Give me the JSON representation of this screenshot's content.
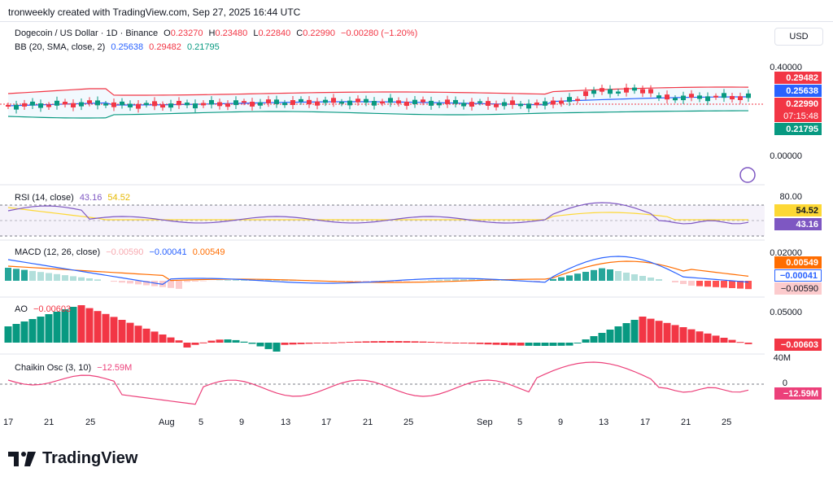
{
  "header": {
    "text": "tronweekly created with TradingView.com, Sep 27, 2025 16:44 UTC"
  },
  "main": {
    "title": "Dogecoin / US Dollar · 1D · Binance",
    "ohlc": {
      "o_label": "O",
      "o": "0.23270",
      "h_label": "H",
      "h": "0.23480",
      "l_label": "L",
      "l": "0.22840",
      "c_label": "C",
      "c": "0.22990",
      "change": "−0.00280 (−1.20%)"
    },
    "bb_label": "BB (20, SMA, close, 2)",
    "bb_basis": "0.25638",
    "bb_upper": "0.29482",
    "bb_lower": "0.21795",
    "scale": [
      "0.40000",
      "0.00000"
    ],
    "tags": {
      "upper": "0.29482",
      "basis": "0.25638",
      "price": "0.22990",
      "countdown": "07:15:48",
      "lower": "0.21795"
    }
  },
  "currency_button": "USD",
  "rsi": {
    "label": "RSI (14, close)",
    "value": "43.16",
    "ma": "54.52",
    "scale_top": "80.00",
    "tag_ma": "54.52",
    "tag_val": "43.16"
  },
  "macd": {
    "label": "MACD (12, 26, close)",
    "hist": "−0.00590",
    "macd": "−0.00041",
    "signal": "0.00549",
    "scale_top": "0.02000",
    "tag_signal": "0.00549",
    "tag_macd": "−0.00041",
    "tag_hist": "−0.00590"
  },
  "ao": {
    "label": "AO",
    "value": "−0.00603",
    "scale_top": "0.05000",
    "tag": "−0.00603"
  },
  "chaikin": {
    "label": "Chaikin Osc (3, 10)",
    "value": "−12.59M",
    "scale_top": "40M",
    "scale_zero": "0",
    "tag": "−12.59M"
  },
  "xaxis": [
    "17",
    "21",
    "25",
    "Aug",
    "5",
    "9",
    "13",
    "17",
    "21",
    "25",
    "Sep",
    "5",
    "9",
    "13",
    "17",
    "21",
    "25"
  ],
  "footer": {
    "brand": "TradingView"
  },
  "colors": {
    "up": "#089981",
    "down": "#f23645",
    "basis": "#2962ff",
    "upper": "#f23645",
    "lower": "#089981",
    "rsi": "#7e57c2",
    "rsi_ma": "#fdd835",
    "macd": "#2962ff",
    "signal": "#ff6d00",
    "chaikin": "#ec407a"
  }
}
